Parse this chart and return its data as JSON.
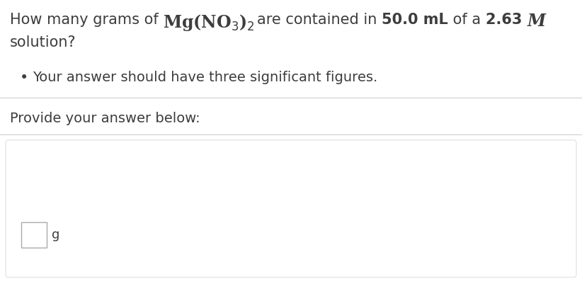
{
  "background_color": "#ffffff",
  "text_color": "#3d3d3d",
  "separator_color": "#d0d0d0",
  "box_border_color": "#aaaaaa",
  "bottom_area_border": "#e0e0e0",
  "font_size_question": 15,
  "font_size_bullet": 14,
  "font_size_provide": 14,
  "bullet_text": "Your answer should have three significant figures.",
  "provide_text": "Provide your answer below:",
  "unit_label": "g"
}
